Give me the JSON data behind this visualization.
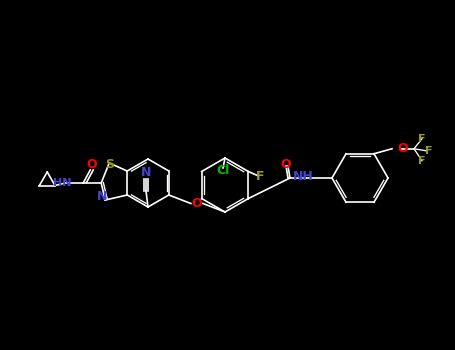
{
  "bg": "#000000",
  "bond_color": "#FFFFFF",
  "bond_width": 1.2,
  "colors": {
    "N": "#4444CC",
    "O": "#FF0000",
    "S": "#999900",
    "F": "#999933",
    "Cl": "#00BB00",
    "C": "#CCCCCC",
    "default": "#CCCCCC"
  },
  "label_fontsize": 8,
  "figwidth": 4.55,
  "figheight": 3.5,
  "dpi": 100
}
